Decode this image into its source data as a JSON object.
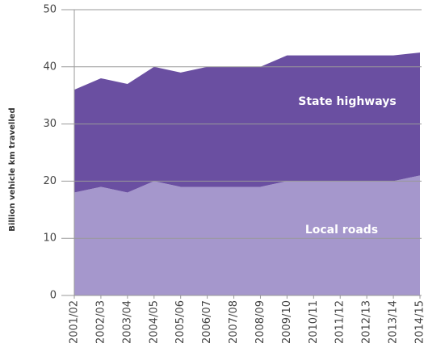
{
  "chart_data": {
    "type": "stacked_area",
    "ylabel": "Billion vehicle km travelled",
    "categories": [
      "2001/02",
      "2002/03",
      "2003/04",
      "2004/05",
      "2005/06",
      "2006/07",
      "2007/08",
      "2008/09",
      "2009/10",
      "2010/11",
      "2011/12",
      "2012/13",
      "2013/14",
      "2014/15"
    ],
    "series": [
      {
        "name": "Local roads",
        "color": "#a597cc",
        "values": [
          18,
          19,
          18,
          20,
          19,
          19,
          19,
          19,
          20,
          20,
          20,
          20,
          20,
          21
        ]
      },
      {
        "name": "State highways",
        "color": "#6a4fa1",
        "values": [
          18,
          19,
          19,
          20,
          20,
          21,
          21,
          21,
          22,
          22,
          22,
          22,
          22,
          21.5
        ]
      }
    ],
    "ylim": [
      0,
      50
    ],
    "yticks": [
      0,
      10,
      20,
      30,
      40,
      50
    ],
    "grid": true
  }
}
